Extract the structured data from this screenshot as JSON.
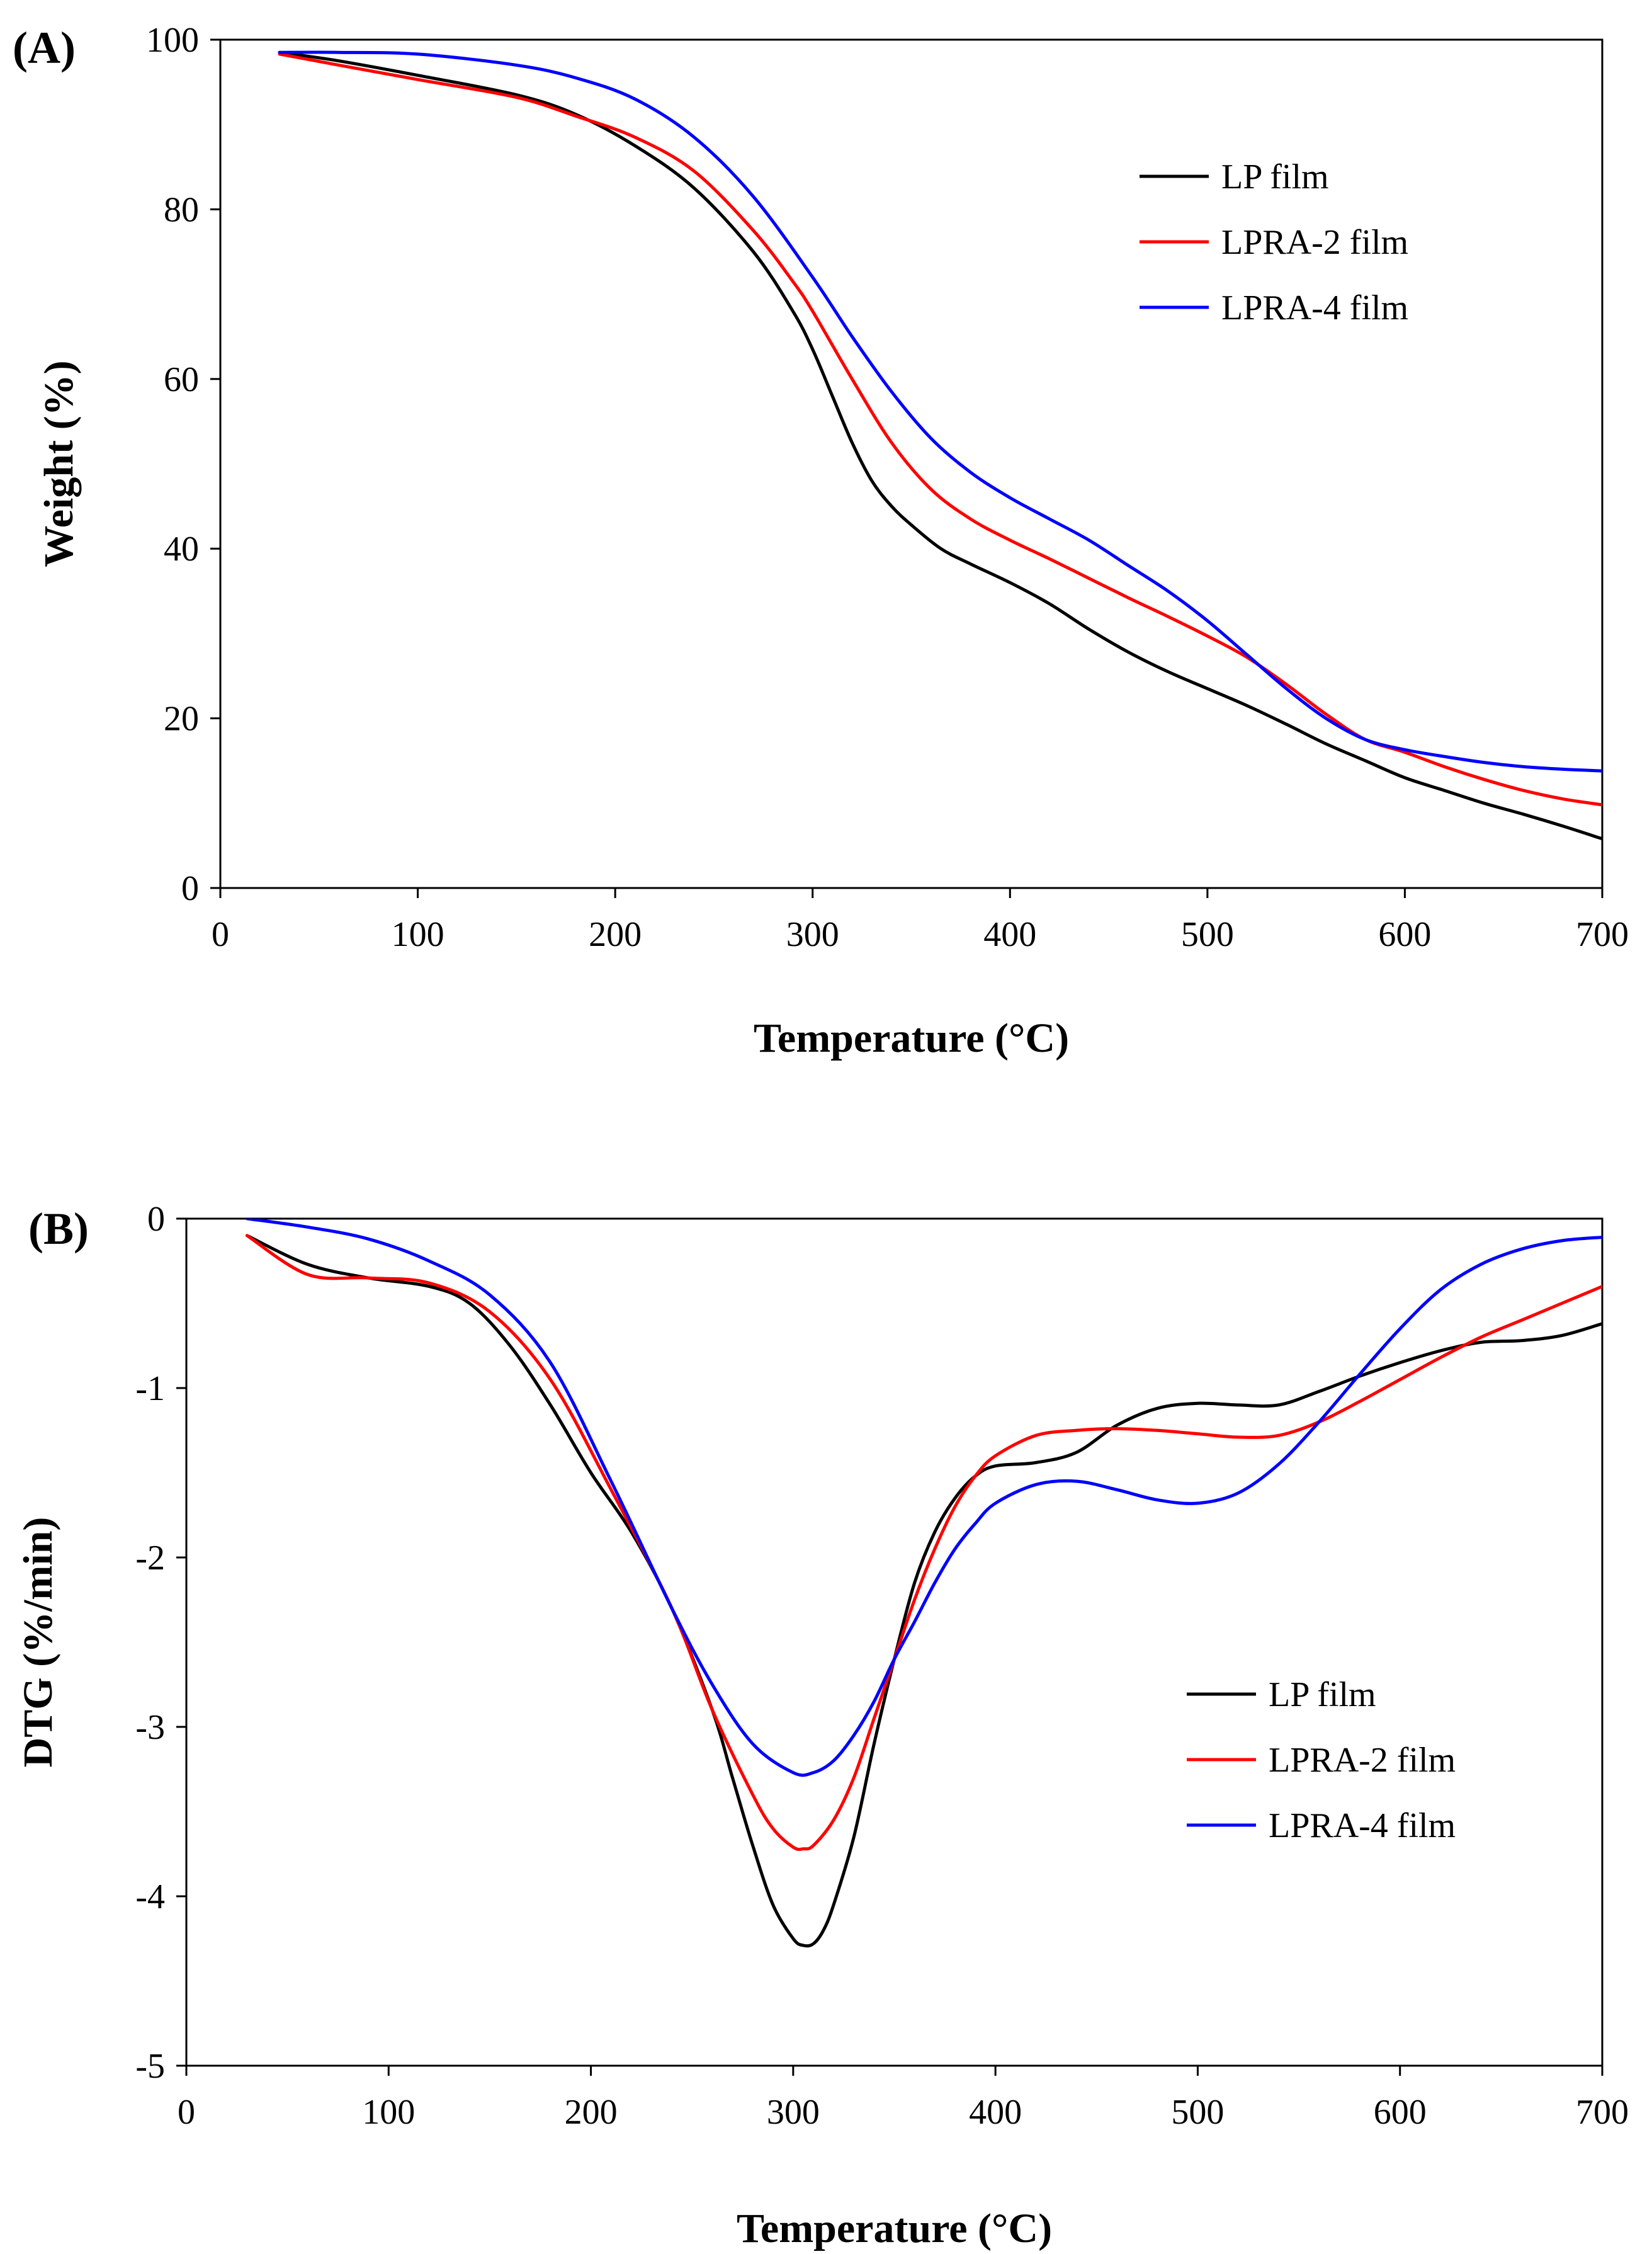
{
  "chart_data": [
    {
      "type": "line",
      "panel_label": "(A)",
      "xlabel": "Temperature (°C)",
      "ylabel": "Weight (%)",
      "xlim": [
        0,
        700
      ],
      "ylim": [
        0,
        100
      ],
      "xticks": [
        0,
        100,
        200,
        300,
        400,
        500,
        600,
        700
      ],
      "yticks": [
        0,
        20,
        40,
        60,
        80,
        100
      ],
      "grid": false,
      "legend_position": "top-right",
      "series": [
        {
          "name": "LP film",
          "color": "#000000",
          "x": [
            30,
            60,
            100,
            150,
            180,
            210,
            240,
            270,
            290,
            300,
            310,
            320,
            330,
            340,
            350,
            365,
            380,
            400,
            420,
            440,
            460,
            480,
            500,
            520,
            540,
            560,
            580,
            600,
            620,
            640,
            660,
            680,
            700
          ],
          "y": [
            98.5,
            97.5,
            95.8,
            93.5,
            91.2,
            87.5,
            82.5,
            75.0,
            68.0,
            63.5,
            58.0,
            52.5,
            48.0,
            45.0,
            42.8,
            40.0,
            38.2,
            36.0,
            33.5,
            30.5,
            27.8,
            25.5,
            23.5,
            21.5,
            19.3,
            17.0,
            15.0,
            13.0,
            11.5,
            10.0,
            8.7,
            7.3,
            5.8
          ]
        },
        {
          "name": "LPRA-2 film",
          "color": "#ff0000",
          "x": [
            30,
            60,
            100,
            150,
            180,
            210,
            240,
            270,
            290,
            300,
            320,
            340,
            360,
            380,
            400,
            420,
            440,
            460,
            480,
            500,
            520,
            540,
            560,
            580,
            600,
            620,
            640,
            660,
            680,
            700
          ],
          "y": [
            98.3,
            97.0,
            95.3,
            93.2,
            91.0,
            88.5,
            84.5,
            77.5,
            71.5,
            68.0,
            60.0,
            52.5,
            47.0,
            43.5,
            41.0,
            38.8,
            36.5,
            34.2,
            32.0,
            29.7,
            27.2,
            24.0,
            20.5,
            17.5,
            16.0,
            14.3,
            12.8,
            11.5,
            10.5,
            9.8
          ]
        },
        {
          "name": "LPRA-4 film",
          "color": "#0000ff",
          "x": [
            30,
            60,
            100,
            150,
            180,
            210,
            240,
            270,
            300,
            320,
            340,
            360,
            380,
            400,
            420,
            440,
            460,
            480,
            500,
            520,
            540,
            560,
            580,
            600,
            620,
            640,
            660,
            680,
            700
          ],
          "y": [
            98.5,
            98.5,
            98.3,
            97.0,
            95.5,
            93.0,
            88.5,
            81.5,
            72.0,
            65.0,
            58.5,
            53.0,
            49.0,
            46.0,
            43.5,
            41.0,
            38.0,
            35.0,
            31.5,
            27.5,
            23.5,
            20.0,
            17.5,
            16.3,
            15.5,
            14.8,
            14.3,
            14.0,
            13.8
          ]
        }
      ]
    },
    {
      "type": "line",
      "panel_label": "(B)",
      "xlabel": "Temperature (°C)",
      "ylabel": "DTG (%/min)",
      "xlim": [
        0,
        700
      ],
      "ylim": [
        -5,
        0
      ],
      "xticks": [
        0,
        100,
        200,
        300,
        400,
        500,
        600,
        700
      ],
      "yticks": [
        0,
        -1,
        -2,
        -3,
        -4,
        -5
      ],
      "grid": false,
      "legend_position": "bottom-right",
      "series": [
        {
          "name": "LP film",
          "color": "#000000",
          "x": [
            30,
            60,
            90,
            120,
            140,
            160,
            180,
            200,
            220,
            240,
            260,
            270,
            280,
            290,
            300,
            305,
            310,
            315,
            320,
            330,
            340,
            350,
            360,
            370,
            380,
            390,
            400,
            420,
            440,
            460,
            480,
            500,
            520,
            540,
            560,
            580,
            600,
            620,
            640,
            660,
            680,
            700
          ],
          "y": [
            -0.1,
            -0.27,
            -0.35,
            -0.4,
            -0.5,
            -0.75,
            -1.1,
            -1.5,
            -1.85,
            -2.3,
            -2.9,
            -3.3,
            -3.7,
            -4.05,
            -4.25,
            -4.29,
            -4.28,
            -4.2,
            -4.05,
            -3.65,
            -3.1,
            -2.6,
            -2.15,
            -1.85,
            -1.65,
            -1.52,
            -1.46,
            -1.44,
            -1.38,
            -1.22,
            -1.12,
            -1.09,
            -1.1,
            -1.1,
            -1.02,
            -0.93,
            -0.85,
            -0.78,
            -0.73,
            -0.72,
            -0.69,
            -0.62
          ]
        },
        {
          "name": "LPRA-2 film",
          "color": "#ff0000",
          "x": [
            30,
            60,
            90,
            120,
            150,
            180,
            210,
            240,
            260,
            280,
            290,
            300,
            305,
            310,
            320,
            330,
            340,
            350,
            360,
            370,
            380,
            390,
            400,
            420,
            440,
            460,
            480,
            500,
            520,
            540,
            560,
            580,
            600,
            620,
            640,
            660,
            680,
            700
          ],
          "y": [
            -0.1,
            -0.33,
            -0.35,
            -0.38,
            -0.55,
            -0.95,
            -1.6,
            -2.3,
            -2.9,
            -3.4,
            -3.6,
            -3.71,
            -3.72,
            -3.7,
            -3.55,
            -3.3,
            -2.95,
            -2.6,
            -2.25,
            -1.95,
            -1.7,
            -1.52,
            -1.4,
            -1.28,
            -1.25,
            -1.24,
            -1.25,
            -1.27,
            -1.29,
            -1.28,
            -1.2,
            -1.08,
            -0.95,
            -0.82,
            -0.7,
            -0.6,
            -0.5,
            -0.4
          ]
        },
        {
          "name": "LPRA-4 film",
          "color": "#0000ff",
          "x": [
            30,
            60,
            90,
            120,
            150,
            180,
            210,
            240,
            260,
            280,
            300,
            310,
            320,
            330,
            340,
            350,
            360,
            370,
            380,
            390,
            400,
            420,
            440,
            460,
            480,
            500,
            520,
            540,
            560,
            580,
            600,
            620,
            640,
            660,
            680,
            700
          ],
          "y": [
            0.0,
            -0.05,
            -0.12,
            -0.25,
            -0.45,
            -0.85,
            -1.55,
            -2.3,
            -2.75,
            -3.1,
            -3.27,
            -3.27,
            -3.2,
            -3.05,
            -2.85,
            -2.6,
            -2.38,
            -2.15,
            -1.95,
            -1.8,
            -1.68,
            -1.57,
            -1.55,
            -1.6,
            -1.66,
            -1.68,
            -1.62,
            -1.45,
            -1.2,
            -0.92,
            -0.65,
            -0.42,
            -0.27,
            -0.18,
            -0.13,
            -0.11
          ]
        }
      ]
    }
  ]
}
